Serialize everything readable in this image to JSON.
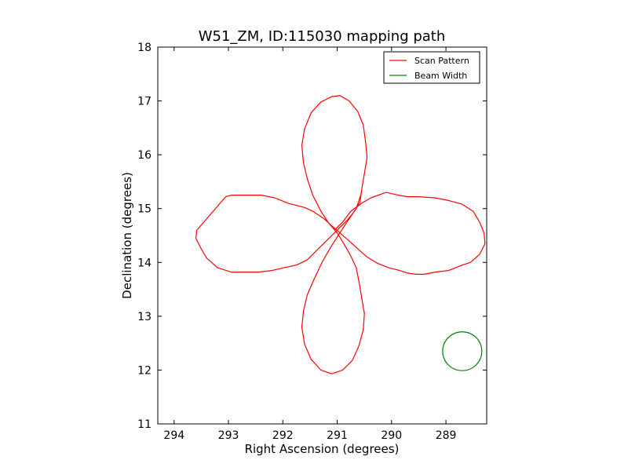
{
  "chart_data": {
    "type": "line",
    "title": "W51_ZM, ID:115030 mapping path",
    "xlabel": "Right Ascension (degrees)",
    "ylabel": "Declination (degrees)",
    "xlim": [
      294.3,
      288.25
    ],
    "ylim": [
      11,
      18
    ],
    "x_reversed": true,
    "xticks": [
      294,
      293,
      292,
      291,
      290,
      289
    ],
    "yticks": [
      11,
      12,
      13,
      14,
      15,
      16,
      17,
      18
    ],
    "grid": false,
    "legend": {
      "placement": "top-right",
      "entries": [
        {
          "label": "Scan Pattern",
          "color": "#ff0000"
        },
        {
          "label": "Beam Width",
          "color": "#008000"
        }
      ]
    },
    "series": [
      {
        "name": "Scan Pattern",
        "color": "#ff0000",
        "points": [
          [
            291.05,
            14.6
          ],
          [
            290.9,
            14.75
          ],
          [
            290.75,
            14.95
          ],
          [
            290.55,
            15.1
          ],
          [
            290.38,
            15.2
          ],
          [
            290.1,
            15.3
          ],
          [
            289.88,
            15.25
          ],
          [
            289.7,
            15.22
          ],
          [
            289.5,
            15.22
          ],
          [
            289.2,
            15.2
          ],
          [
            288.95,
            15.15
          ],
          [
            288.7,
            15.08
          ],
          [
            288.5,
            14.95
          ],
          [
            288.38,
            14.75
          ],
          [
            288.3,
            14.55
          ],
          [
            288.28,
            14.35
          ],
          [
            288.38,
            14.15
          ],
          [
            288.55,
            14.0
          ],
          [
            288.7,
            13.95
          ],
          [
            288.95,
            13.85
          ],
          [
            289.2,
            13.82
          ],
          [
            289.4,
            13.78
          ],
          [
            289.55,
            13.78
          ],
          [
            289.7,
            13.8
          ],
          [
            289.85,
            13.85
          ],
          [
            290.05,
            13.9
          ],
          [
            290.25,
            13.98
          ],
          [
            290.45,
            14.1
          ],
          [
            290.62,
            14.25
          ],
          [
            290.78,
            14.4
          ],
          [
            290.95,
            14.55
          ],
          [
            291.1,
            14.68
          ],
          [
            291.25,
            14.82
          ],
          [
            291.45,
            14.95
          ],
          [
            291.6,
            15.02
          ],
          [
            291.9,
            15.1
          ],
          [
            292.15,
            15.2
          ],
          [
            292.4,
            15.25
          ],
          [
            292.6,
            15.25
          ],
          [
            292.8,
            15.25
          ],
          [
            292.95,
            15.25
          ],
          [
            293.05,
            15.22
          ],
          [
            293.58,
            14.6
          ],
          [
            293.6,
            14.45
          ],
          [
            293.5,
            14.25
          ],
          [
            293.4,
            14.08
          ],
          [
            293.2,
            13.9
          ],
          [
            292.95,
            13.82
          ],
          [
            292.7,
            13.82
          ],
          [
            292.45,
            13.82
          ],
          [
            292.2,
            13.85
          ],
          [
            291.98,
            13.9
          ],
          [
            291.75,
            13.95
          ],
          [
            291.55,
            14.05
          ],
          [
            291.4,
            14.2
          ],
          [
            291.25,
            14.35
          ],
          [
            291.1,
            14.5
          ],
          [
            290.98,
            14.62
          ],
          [
            290.82,
            14.78
          ],
          [
            290.68,
            14.95
          ],
          [
            290.58,
            15.12
          ],
          [
            290.55,
            15.35
          ],
          [
            290.5,
            15.65
          ],
          [
            290.45,
            15.95
          ],
          [
            290.48,
            16.25
          ],
          [
            290.52,
            16.55
          ],
          [
            290.62,
            16.8
          ],
          [
            290.78,
            17.0
          ],
          [
            290.95,
            17.1
          ],
          [
            291.1,
            17.08
          ],
          [
            291.3,
            16.98
          ],
          [
            291.48,
            16.78
          ],
          [
            291.6,
            16.48
          ],
          [
            291.65,
            16.18
          ],
          [
            291.62,
            15.85
          ],
          [
            291.55,
            15.55
          ],
          [
            291.45,
            15.25
          ],
          [
            291.3,
            14.95
          ],
          [
            291.15,
            14.72
          ],
          [
            291.0,
            14.55
          ],
          [
            290.88,
            14.35
          ],
          [
            290.75,
            14.12
          ],
          [
            290.65,
            13.9
          ],
          [
            290.6,
            13.65
          ],
          [
            290.55,
            13.35
          ],
          [
            290.5,
            13.05
          ],
          [
            290.52,
            12.75
          ],
          [
            290.6,
            12.45
          ],
          [
            290.72,
            12.18
          ],
          [
            290.9,
            12.0
          ],
          [
            291.1,
            11.93
          ],
          [
            291.3,
            12.0
          ],
          [
            291.48,
            12.2
          ],
          [
            291.6,
            12.48
          ],
          [
            291.65,
            12.8
          ],
          [
            291.62,
            13.1
          ],
          [
            291.55,
            13.4
          ],
          [
            291.42,
            13.7
          ],
          [
            291.28,
            14.0
          ],
          [
            291.12,
            14.28
          ],
          [
            290.95,
            14.55
          ],
          [
            290.82,
            14.75
          ],
          [
            290.65,
            15.0
          ],
          [
            290.55,
            15.3
          ]
        ]
      }
    ],
    "beam_width": {
      "name": "Beam Width",
      "color": "#008000",
      "center": [
        288.7,
        12.35
      ],
      "radius_deg": 0.36
    }
  }
}
